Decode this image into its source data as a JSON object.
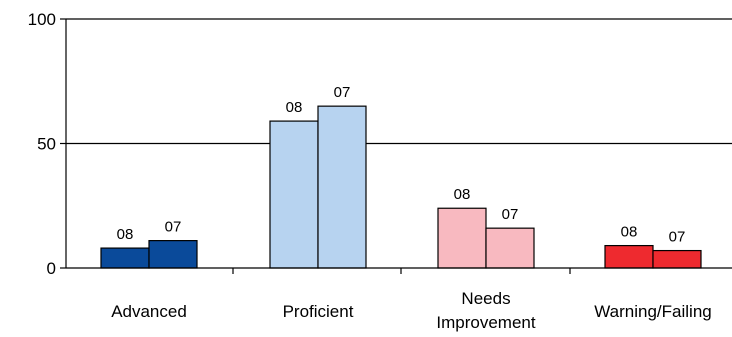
{
  "chart_data": {
    "type": "bar",
    "categories": [
      "Advanced",
      "Proficient",
      "Needs Improvement",
      "Warning/Failing"
    ],
    "category_lines": [
      [
        "Advanced"
      ],
      [
        "Proficient"
      ],
      [
        "Needs",
        "Improvement"
      ],
      [
        "Warning/Failing"
      ]
    ],
    "series": [
      {
        "name": "08",
        "values": [
          8,
          59,
          24,
          9
        ]
      },
      {
        "name": "07",
        "values": [
          11,
          65,
          16,
          7
        ]
      }
    ],
    "bar_colors": [
      [
        "#0a4a9a",
        "#0a4a9a"
      ],
      [
        "#b7d3f0",
        "#b7d3f0"
      ],
      [
        "#f8b9c0",
        "#f8b9c0"
      ],
      [
        "#ee2a2f",
        "#ee2a2f"
      ]
    ],
    "ylim": [
      0,
      100
    ],
    "yticks": [
      "0",
      "50",
      "100"
    ],
    "grid": true,
    "title": "",
    "xlabel": "",
    "ylabel": ""
  }
}
